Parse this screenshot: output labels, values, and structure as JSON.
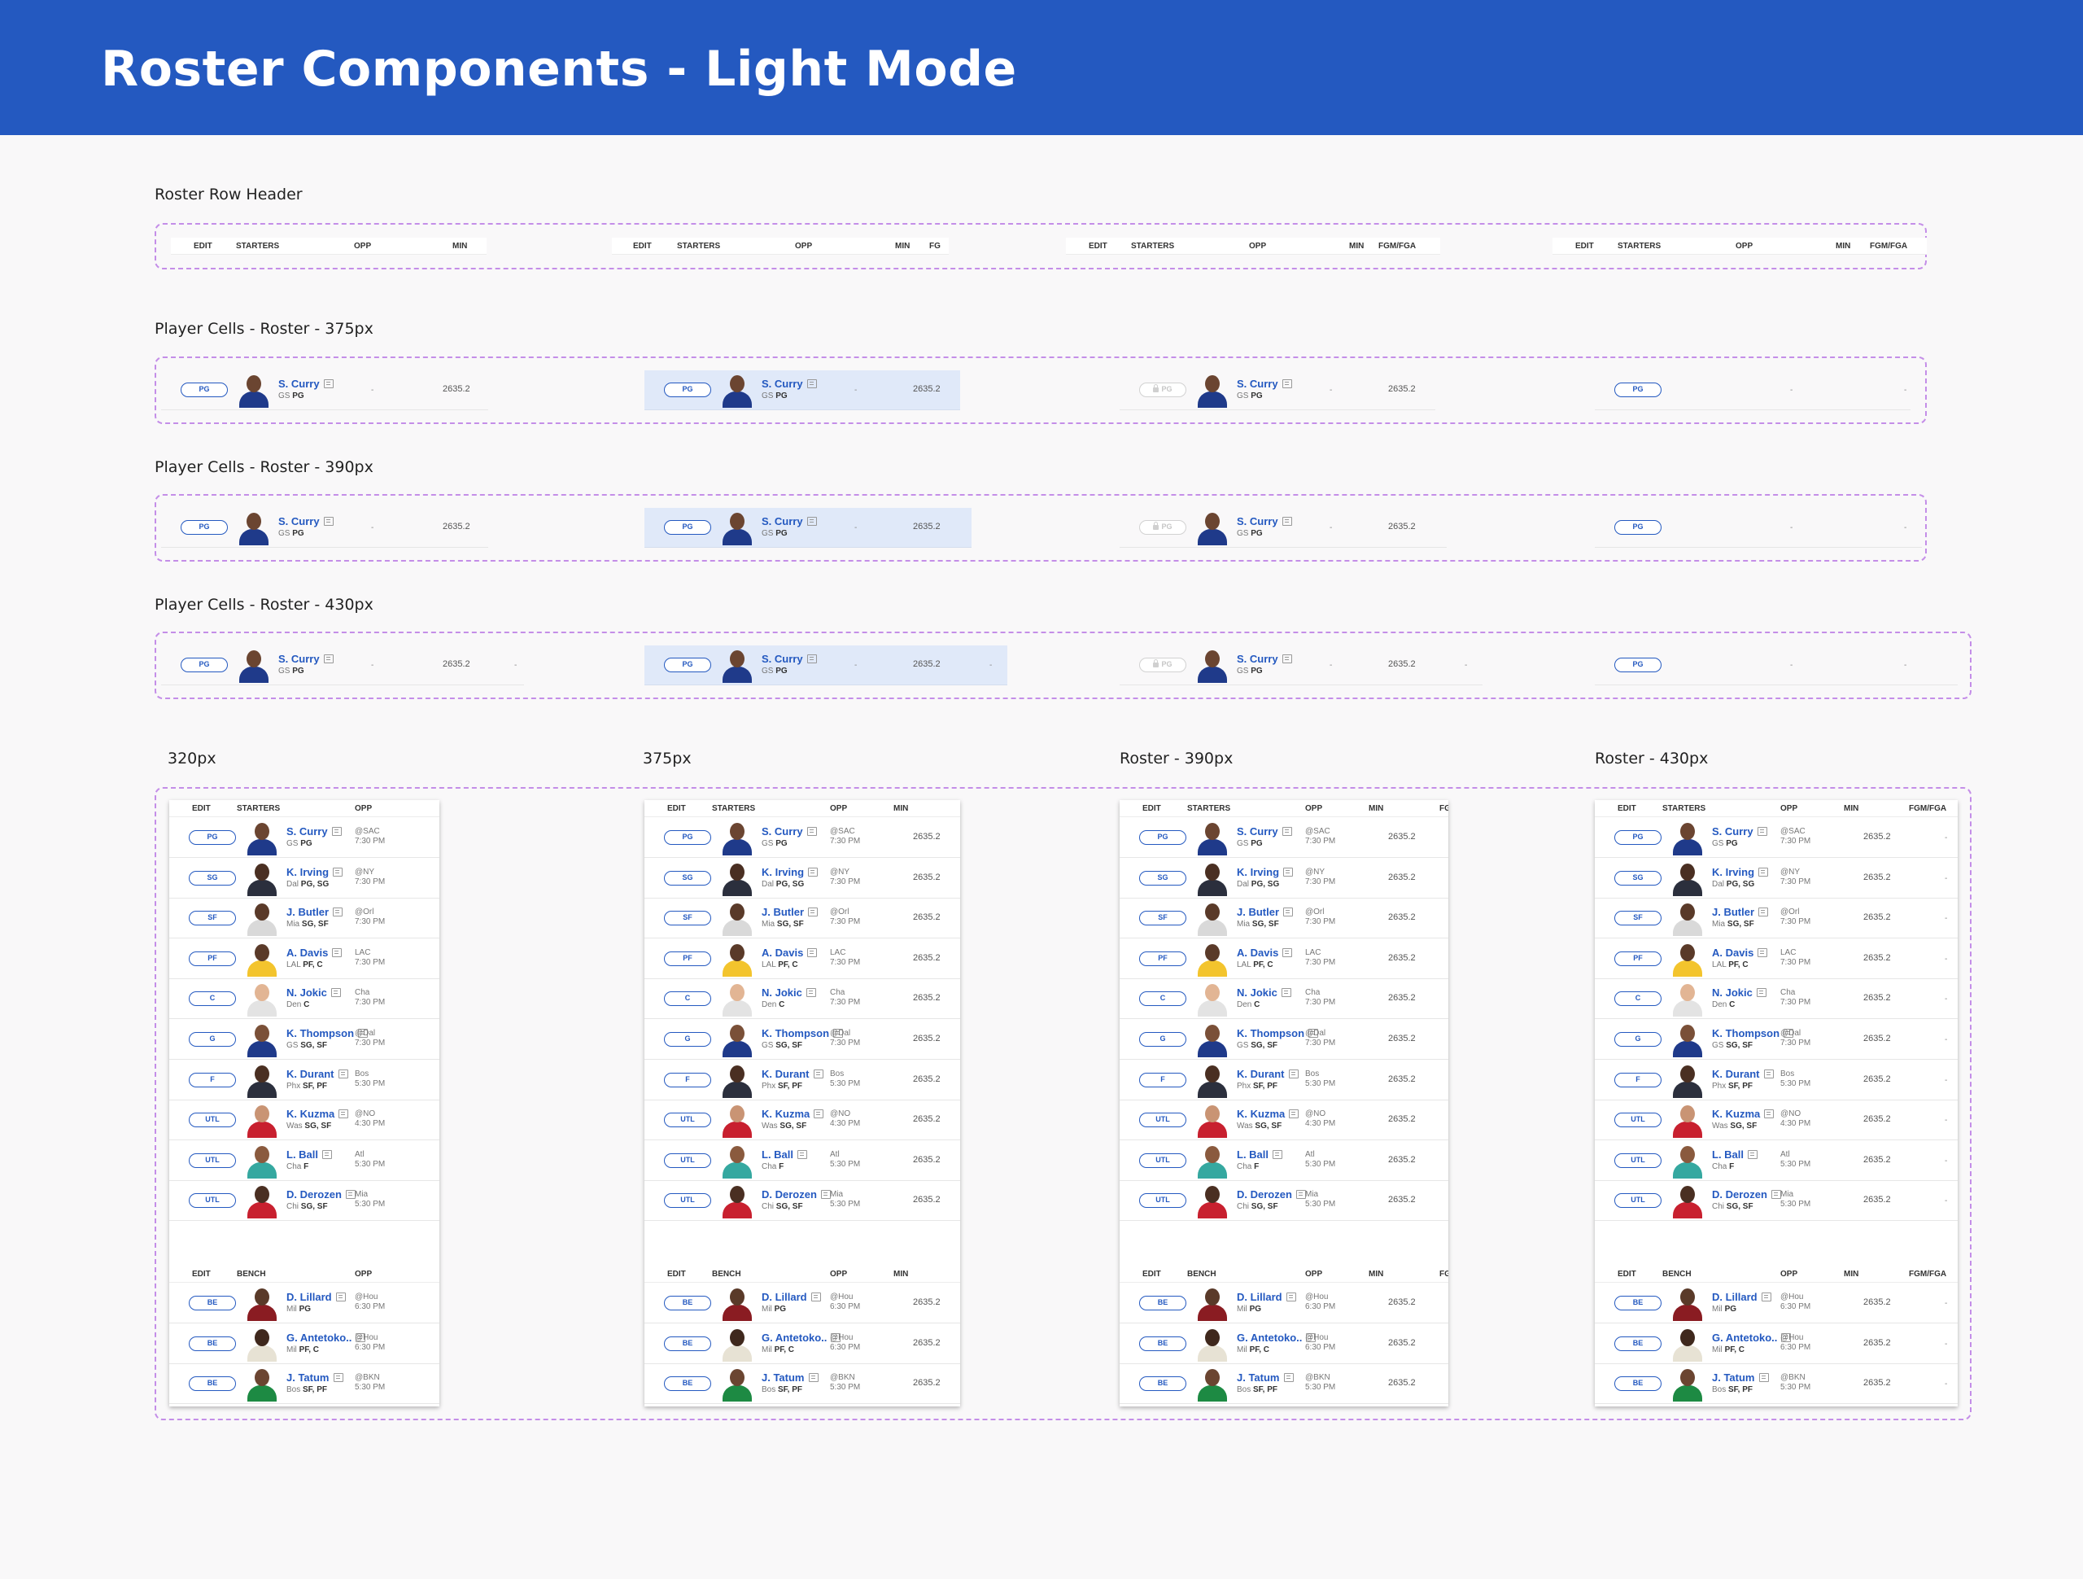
{
  "title": "Roster Components - Light Mode",
  "sections": {
    "row_header": "Roster Row Header",
    "cells_375": "Player Cells - Roster - 375px",
    "cells_390": "Player Cells - Roster - 390px",
    "cells_430": "Player Cells - Roster - 430px",
    "phone_320": "320px",
    "phone_375": "375px",
    "phone_390": "Roster - 390px",
    "phone_430": "Roster - 430px"
  },
  "headers": {
    "edit": "EDIT",
    "starters": "STARTERS",
    "bench": "BENCH",
    "opp": "OPP",
    "min": "MIN",
    "fg": "FG",
    "fgm_fga": "FGM/FGA",
    "fgm_clip": "FGM"
  },
  "sample": {
    "pos": "PG",
    "name": "S. Curry",
    "team": "GS",
    "elig": "PG",
    "opp": "-",
    "min": "2635.2",
    "empty": "-"
  },
  "colors": {
    "banner": "#2459c0",
    "accent": "#2459c0",
    "selected_row": "#e0e9f9",
    "frame_border": "#c48ee8"
  },
  "icons": {
    "news": "news-icon",
    "lock": "lock-icon",
    "avatar": "player-avatar"
  },
  "starters": [
    {
      "pos": "PG",
      "name": "S. Curry",
      "team": "GS",
      "elig": "PG",
      "opp1": "@SAC",
      "opp2": "7:30 PM",
      "min": "2635.2",
      "skin": "#6b4531",
      "jersey": "#1f3a8a"
    },
    {
      "pos": "SG",
      "name": "K. Irving",
      "team": "Dal",
      "elig": "PG, SG",
      "opp1": "@NY",
      "opp2": "7:30 PM",
      "min": "2635.2",
      "skin": "#4a2f22",
      "jersey": "#2b2f3d"
    },
    {
      "pos": "SF",
      "name": "J. Butler",
      "team": "Mia",
      "elig": "SG, SF",
      "opp1": "@Orl",
      "opp2": "7:30 PM",
      "min": "2635.2",
      "skin": "#5a3a29",
      "jersey": "#d9d9d9"
    },
    {
      "pos": "PF",
      "name": "A. Davis",
      "team": "LAL",
      "elig": "PF, C",
      "opp1": "LAC",
      "opp2": "7:30 PM",
      "min": "2635.2",
      "skin": "#5a3a29",
      "jersey": "#f3c42d"
    },
    {
      "pos": "C",
      "name": "N. Jokic",
      "team": "Den",
      "elig": "C",
      "opp1": "Cha",
      "opp2": "7:30 PM",
      "min": "2635.2",
      "skin": "#e2b594",
      "jersey": "#e3e3e3"
    },
    {
      "pos": "G",
      "name": "K. Thompson",
      "team": "GS",
      "elig": "SG, SF",
      "opp1": "@Dal",
      "opp2": "7:30 PM",
      "min": "2635.2",
      "skin": "#7a5038",
      "jersey": "#1f3a8a"
    },
    {
      "pos": "F",
      "name": "K. Durant",
      "team": "Phx",
      "elig": "SF, PF",
      "opp1": "Bos",
      "opp2": "5:30 PM",
      "min": "2635.2",
      "skin": "#4a2f22",
      "jersey": "#2b2f3d"
    },
    {
      "pos": "UTL",
      "name": "K. Kuzma",
      "team": "Was",
      "elig": "SG, SF",
      "opp1": "@NO",
      "opp2": "4:30 PM",
      "min": "2635.2",
      "skin": "#c99474",
      "jersey": "#c8202f"
    },
    {
      "pos": "UTL",
      "name": "L. Ball",
      "team": "Cha",
      "elig": "F",
      "opp1": "Atl",
      "opp2": "5:30 PM",
      "min": "2635.2",
      "skin": "#8a5a3e",
      "jersey": "#35a8a0"
    },
    {
      "pos": "UTL",
      "name": "D. Derozen",
      "team": "Chi",
      "elig": "SG, SF",
      "opp1": "Mia",
      "opp2": "5:30 PM",
      "min": "2635.2",
      "skin": "#4a2f22",
      "jersey": "#c8202f"
    }
  ],
  "bench": [
    {
      "pos": "BE",
      "name": "D. Lillard",
      "team": "Mil",
      "elig": "PG",
      "opp1": "@Hou",
      "opp2": "6:30 PM",
      "min": "2635.2",
      "skin": "#5a3a29",
      "jersey": "#8a1c22"
    },
    {
      "pos": "BE",
      "name": "G. Antetoko..",
      "team": "Mil",
      "elig": "PF, C",
      "opp1": "@Hou",
      "opp2": "6:30 PM",
      "min": "2635.2",
      "skin": "#3f281d",
      "jersey": "#e7e2d4"
    },
    {
      "pos": "BE",
      "name": "J. Tatum",
      "team": "Bos",
      "elig": "SF, PF",
      "opp1": "@BKN",
      "opp2": "5:30 PM",
      "min": "2635.2",
      "skin": "#6b4531",
      "jersey": "#1d8a43"
    }
  ]
}
